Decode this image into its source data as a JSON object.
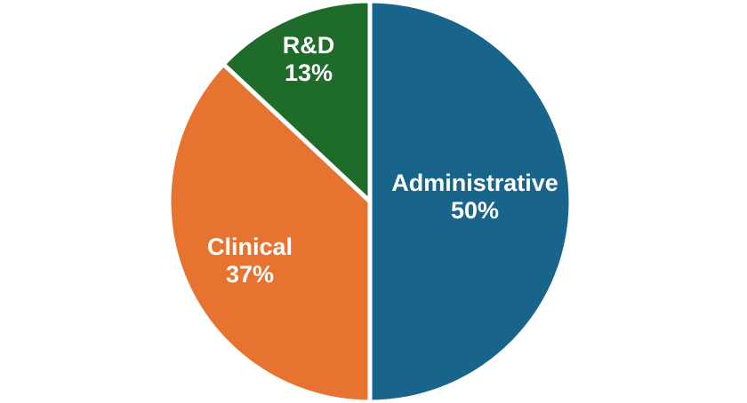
{
  "chart_data": {
    "type": "pie",
    "title": "",
    "background": "#FFFFFF",
    "separator_color": "#FFFFFF",
    "label_text_color": "#FFFFFF",
    "start_angle": "top",
    "direction": "clockwise",
    "slices": [
      {
        "label": "Administrative",
        "value": 50,
        "pct_label": "50%",
        "color": "#19648B"
      },
      {
        "label": "Clinical",
        "value": 37,
        "pct_label": "37%",
        "color": "#E77330"
      },
      {
        "label": "R&D",
        "value": 13,
        "pct_label": "13%",
        "color": "#1E6B2A"
      }
    ]
  }
}
